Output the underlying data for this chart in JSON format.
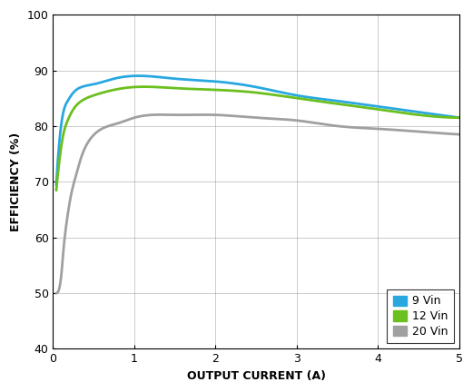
{
  "xlabel": "OUTPUT CURRENT (A)",
  "ylabel": "EFFICIENCY (%)",
  "xlim": [
    0,
    5
  ],
  "ylim": [
    40,
    100
  ],
  "xticks": [
    0,
    1,
    2,
    3,
    4,
    5
  ],
  "yticks": [
    40,
    50,
    60,
    70,
    80,
    90,
    100
  ],
  "series": [
    {
      "label": "9 Vin",
      "color": "#29A8E0",
      "linewidth": 2.0,
      "x": [
        0.04,
        0.08,
        0.12,
        0.18,
        0.25,
        0.35,
        0.5,
        0.75,
        1.0,
        1.5,
        2.0,
        2.5,
        3.0,
        3.5,
        4.0,
        4.5,
        5.0
      ],
      "y": [
        69.5,
        77.5,
        82.0,
        84.5,
        86.0,
        87.0,
        87.5,
        88.5,
        89.0,
        88.5,
        88.0,
        87.0,
        85.5,
        84.5,
        83.5,
        82.5,
        81.5
      ]
    },
    {
      "label": "12 Vin",
      "color": "#6BBF1E",
      "linewidth": 2.0,
      "x": [
        0.04,
        0.08,
        0.12,
        0.18,
        0.25,
        0.35,
        0.5,
        0.75,
        1.0,
        1.5,
        2.0,
        2.5,
        3.0,
        3.5,
        4.0,
        4.5,
        5.0
      ],
      "y": [
        68.5,
        74.0,
        78.0,
        81.0,
        83.0,
        84.5,
        85.5,
        86.5,
        87.0,
        86.8,
        86.5,
        86.0,
        85.0,
        84.0,
        83.0,
        82.0,
        81.5
      ]
    },
    {
      "label": "20 Vin",
      "color": "#A0A0A0",
      "linewidth": 2.0,
      "x": [
        0.04,
        0.07,
        0.1,
        0.13,
        0.17,
        0.22,
        0.28,
        0.35,
        0.45,
        0.6,
        0.8,
        1.0,
        1.5,
        2.0,
        2.5,
        3.0,
        3.5,
        4.0,
        4.5,
        5.0
      ],
      "y": [
        50.0,
        50.5,
        53.0,
        58.0,
        63.0,
        67.5,
        71.0,
        74.5,
        77.5,
        79.5,
        80.5,
        81.5,
        82.0,
        82.0,
        81.5,
        81.0,
        80.0,
        79.5,
        79.0,
        78.5
      ]
    }
  ],
  "legend_entries": [
    {
      "label": "9 Vin",
      "color": "#29A8E0"
    },
    {
      "label": "12 Vin",
      "color": "#6BBF1E"
    },
    {
      "label": "20 Vin",
      "color": "#A0A0A0"
    }
  ],
  "figsize": [
    5.21,
    4.32
  ],
  "dpi": 100
}
